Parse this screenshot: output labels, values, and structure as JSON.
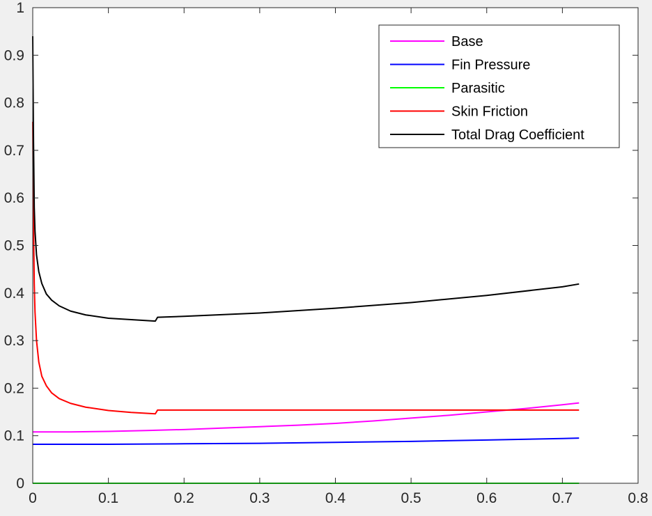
{
  "chart_data": {
    "type": "line",
    "title": "",
    "xlabel": "",
    "ylabel": "",
    "xlim": [
      0,
      0.8
    ],
    "ylim": [
      0,
      1
    ],
    "xticks": [
      "0",
      "0.1",
      "0.2",
      "0.3",
      "0.4",
      "0.5",
      "0.6",
      "0.7",
      "0.8"
    ],
    "yticks": [
      "0",
      "0.1",
      "0.2",
      "0.3",
      "0.4",
      "0.5",
      "0.6",
      "0.7",
      "0.8",
      "0.9",
      "1"
    ],
    "grid": false,
    "legend_position": "top-right",
    "series": [
      {
        "name": "Base",
        "color": "#ff00ff",
        "x": [
          0,
          0.05,
          0.1,
          0.15,
          0.2,
          0.25,
          0.3,
          0.35,
          0.4,
          0.45,
          0.5,
          0.55,
          0.6,
          0.65,
          0.7,
          0.722
        ],
        "y": [
          0.108,
          0.108,
          0.109,
          0.111,
          0.113,
          0.116,
          0.119,
          0.122,
          0.126,
          0.131,
          0.137,
          0.143,
          0.15,
          0.157,
          0.165,
          0.169
        ]
      },
      {
        "name": "Fin Pressure",
        "color": "#0000ff",
        "x": [
          0,
          0.1,
          0.2,
          0.3,
          0.4,
          0.5,
          0.6,
          0.7,
          0.722
        ],
        "y": [
          0.082,
          0.082,
          0.083,
          0.084,
          0.086,
          0.088,
          0.091,
          0.094,
          0.095
        ]
      },
      {
        "name": "Parasitic",
        "color": "#00ff00",
        "x": [
          0,
          0.722
        ],
        "y": [
          0,
          0
        ]
      },
      {
        "name": "Skin Friction",
        "color": "#ff0000",
        "x": [
          0,
          0.001,
          0.002,
          0.003,
          0.005,
          0.008,
          0.012,
          0.018,
          0.025,
          0.035,
          0.05,
          0.07,
          0.1,
          0.13,
          0.162,
          0.165,
          0.2,
          0.3,
          0.4,
          0.5,
          0.6,
          0.7,
          0.722
        ],
        "y": [
          0.76,
          0.55,
          0.42,
          0.36,
          0.3,
          0.255,
          0.225,
          0.205,
          0.19,
          0.178,
          0.168,
          0.16,
          0.153,
          0.149,
          0.146,
          0.154,
          0.154,
          0.154,
          0.154,
          0.154,
          0.154,
          0.154,
          0.154
        ]
      },
      {
        "name": "Total Drag Coefficient",
        "color": "#000000",
        "x": [
          0,
          0.001,
          0.002,
          0.003,
          0.005,
          0.008,
          0.012,
          0.018,
          0.025,
          0.035,
          0.05,
          0.07,
          0.1,
          0.13,
          0.162,
          0.165,
          0.2,
          0.3,
          0.4,
          0.5,
          0.6,
          0.7,
          0.722
        ],
        "y": [
          0.94,
          0.72,
          0.58,
          0.53,
          0.48,
          0.445,
          0.42,
          0.398,
          0.385,
          0.373,
          0.362,
          0.354,
          0.347,
          0.344,
          0.341,
          0.349,
          0.351,
          0.358,
          0.368,
          0.38,
          0.395,
          0.413,
          0.419
        ]
      }
    ]
  }
}
